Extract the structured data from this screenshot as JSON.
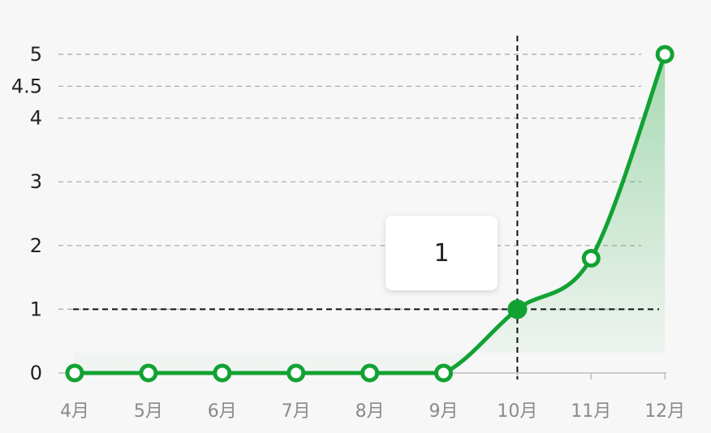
{
  "chart_data": {
    "type": "area",
    "categories": [
      "4月",
      "5月",
      "6月",
      "7月",
      "8月",
      "9月",
      "10月",
      "11月",
      "12月"
    ],
    "values": [
      0,
      0,
      0,
      0,
      0,
      0,
      1,
      1.8,
      5
    ],
    "y_ticks": [
      0,
      1,
      2,
      3,
      4,
      4.5,
      5
    ],
    "ylim": [
      0,
      5
    ],
    "grid": "horizontal-dashed",
    "highlight": {
      "category": "10月",
      "value": 1
    },
    "tooltip": {
      "text": "1"
    },
    "colors": {
      "line": "#12a233",
      "fill": "#12a233",
      "background": "#f7f7f7"
    }
  }
}
